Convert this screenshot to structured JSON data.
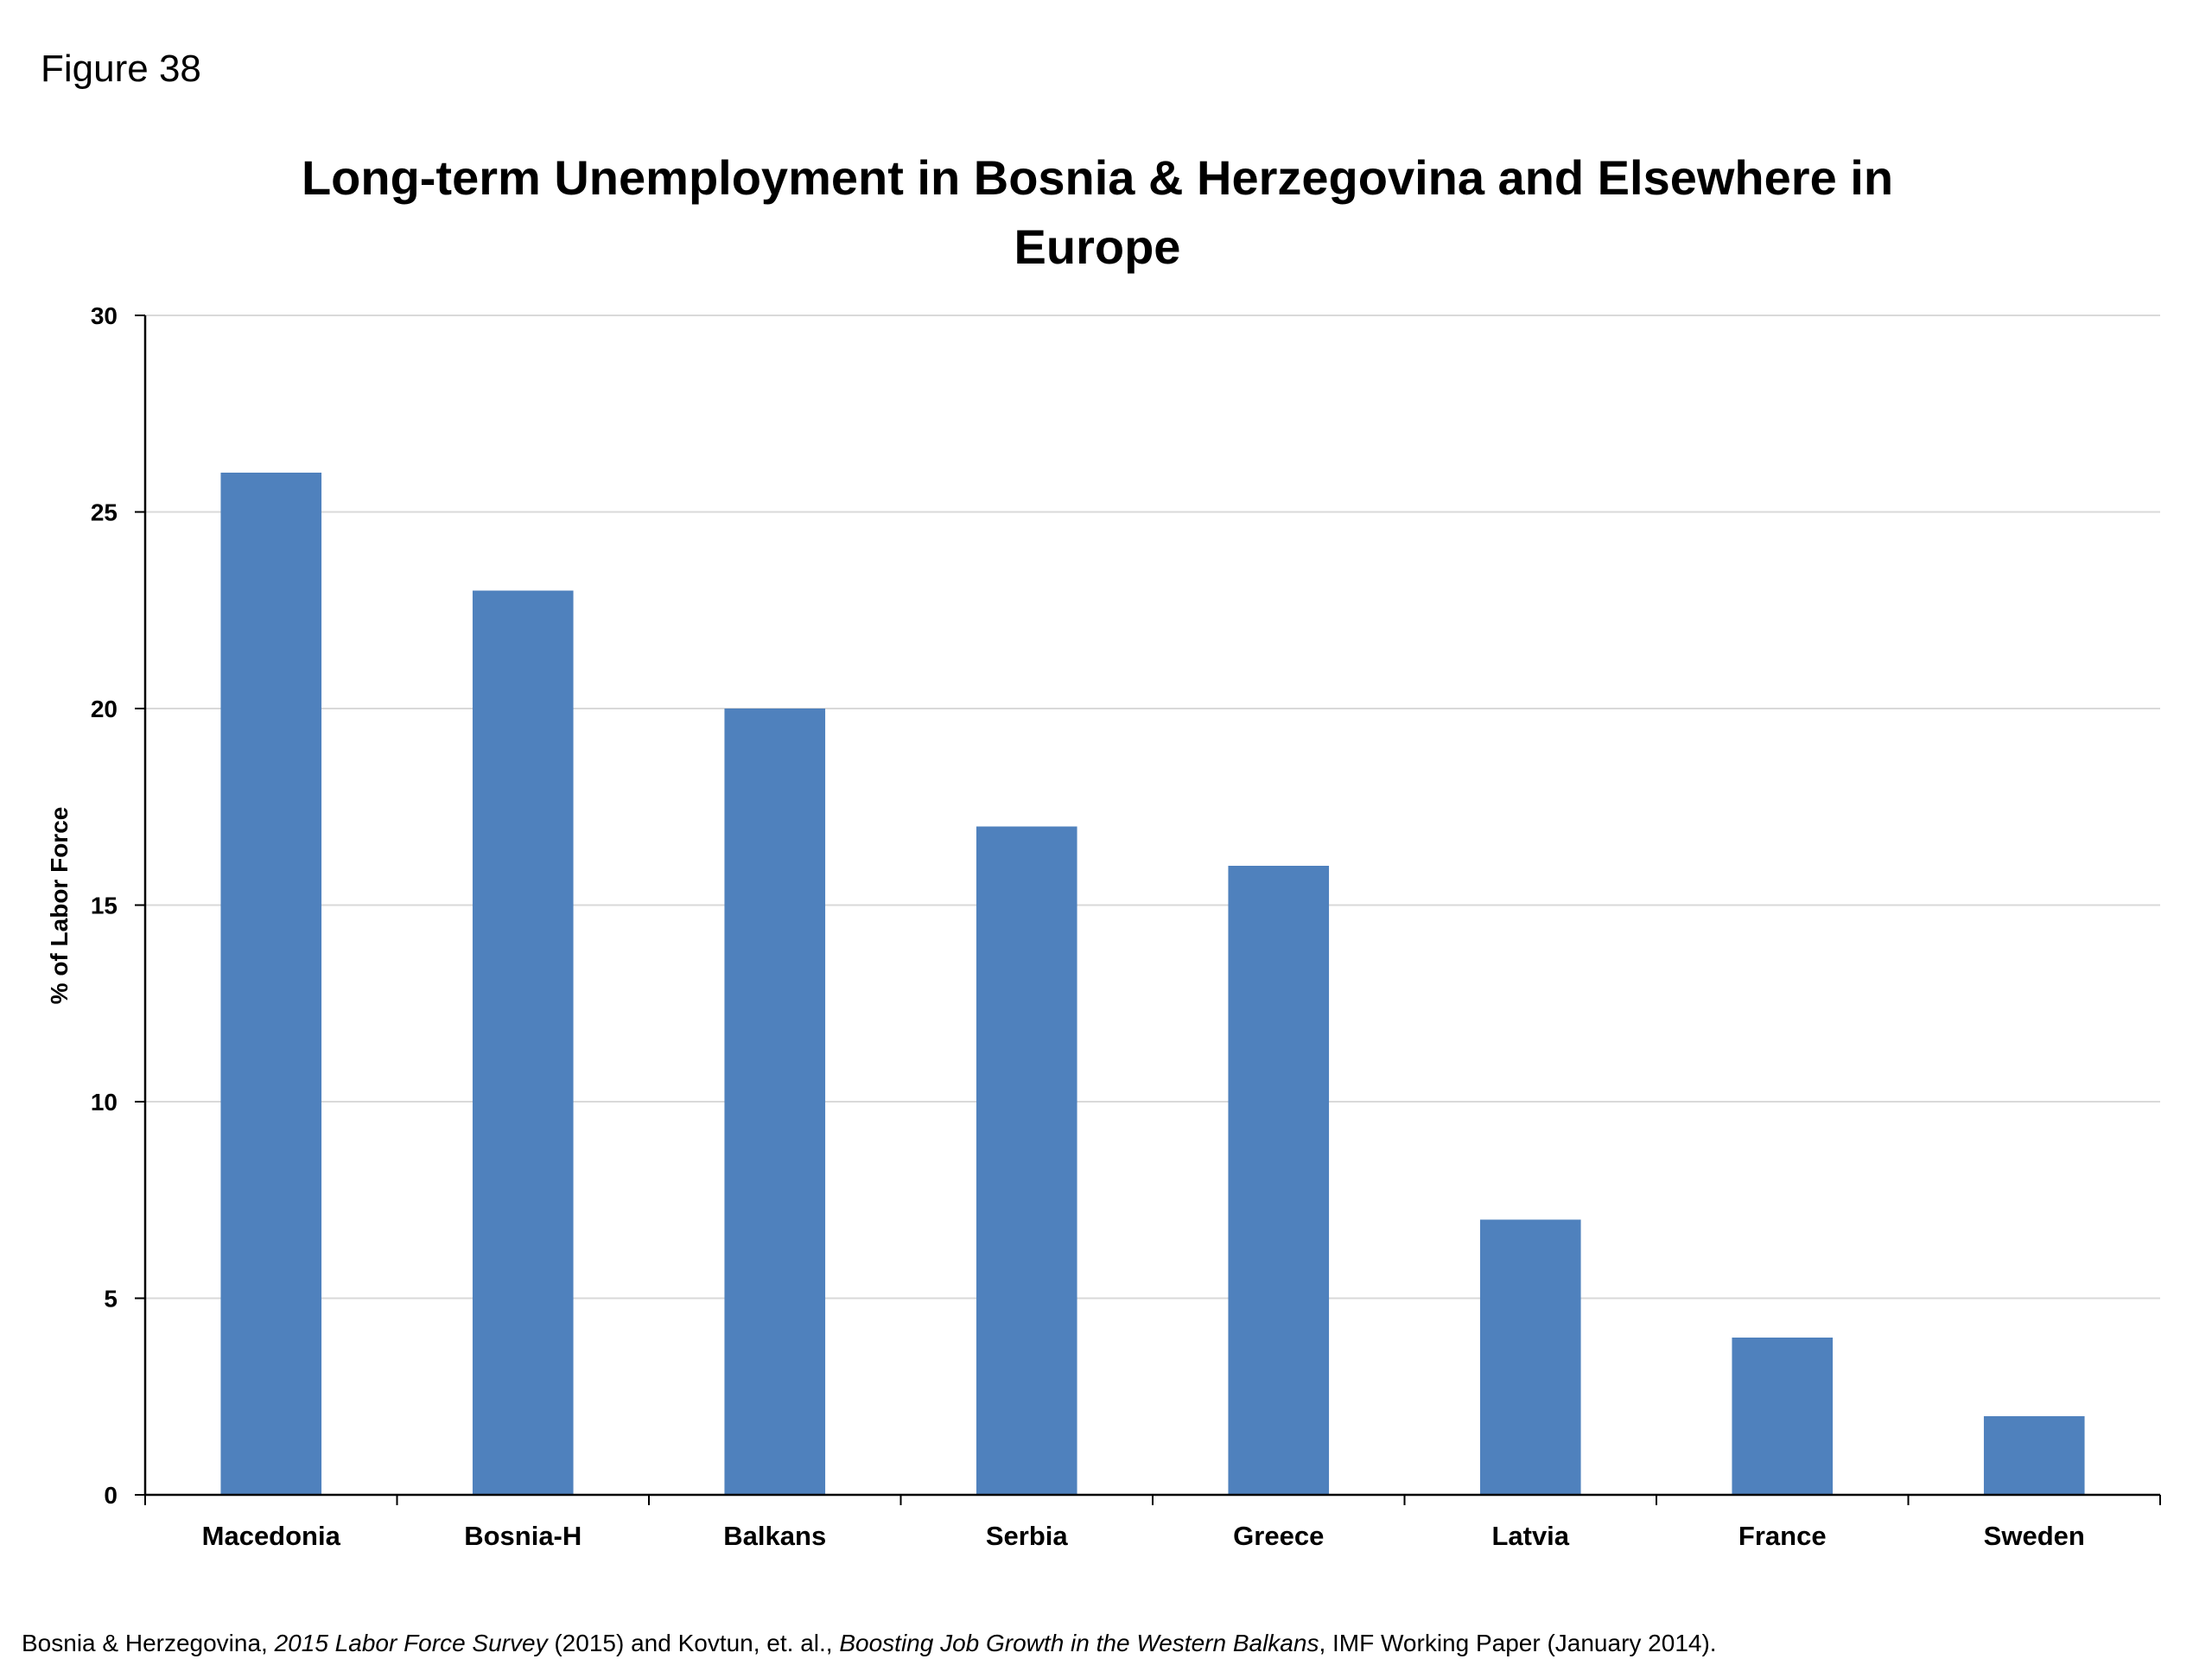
{
  "figure_label": "Figure 38",
  "source_note": {
    "part1": "Bosnia & Herzegovina, ",
    "italic1": "2015 Labor Force Survey",
    "part2": " (2015) and Kovtun, et. al., ",
    "italic2": "Boosting Job Growth in the Western Balkans",
    "part3": ",  IMF Working Paper (January 2014)."
  },
  "colors": {
    "bar": "#4f81bd",
    "gridline": "#d9d9d9",
    "axis": "#000000"
  },
  "chart_data": {
    "type": "bar",
    "title": "Long-term Unemployment in Bosnia & Herzegovina and Elsewhere in Europe",
    "xlabel": "",
    "ylabel": "% of Labor Force",
    "categories": [
      "Macedonia",
      "Bosnia-H",
      "Balkans",
      "Serbia",
      "Greece",
      "Latvia",
      "France",
      "Sweden"
    ],
    "values": [
      26,
      23,
      20,
      17,
      16,
      7,
      4,
      2
    ],
    "ylim": [
      0,
      30
    ],
    "yticks": [
      0,
      5,
      10,
      15,
      20,
      25,
      30
    ],
    "grid": true,
    "legend": "none"
  }
}
